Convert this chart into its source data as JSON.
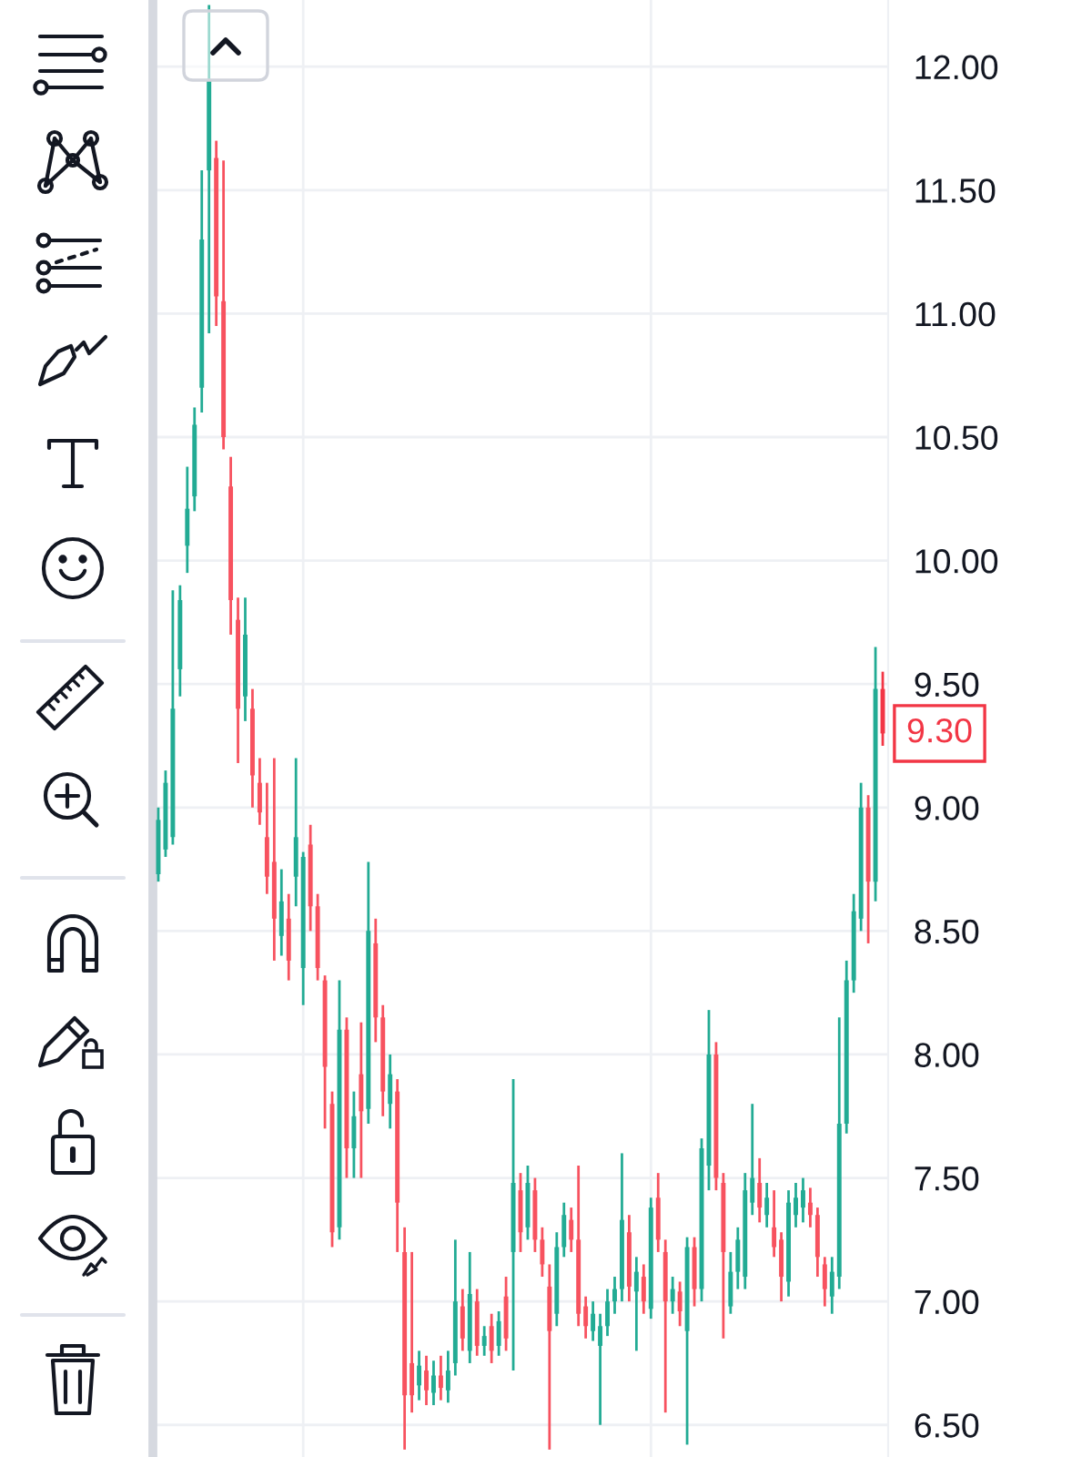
{
  "chart_data": {
    "type": "candlestick",
    "categories": [
      null,
      null,
      null,
      null,
      null,
      null,
      null,
      null,
      null,
      null,
      null,
      null,
      null,
      null,
      null,
      null,
      null,
      null,
      null,
      null,
      null,
      null,
      null,
      null,
      null,
      null,
      null,
      null,
      null,
      null,
      null,
      null,
      null,
      null,
      null,
      null,
      null,
      null,
      null,
      null,
      null,
      null,
      null,
      null,
      null,
      null,
      null,
      null,
      null,
      null,
      null,
      null,
      null,
      null,
      null,
      null,
      null,
      null,
      null,
      null,
      null,
      null,
      null,
      null,
      null,
      null,
      null,
      null,
      null,
      null,
      null,
      null,
      null,
      null,
      null,
      null,
      null,
      null,
      null,
      null,
      null,
      null,
      null,
      null,
      null,
      null,
      null,
      null,
      null,
      null,
      null,
      null,
      null,
      null,
      null,
      null,
      null,
      null,
      null,
      null,
      null
    ],
    "ohlc": [
      [
        8.73,
        9.0,
        8.7,
        8.95
      ],
      [
        8.83,
        9.15,
        8.8,
        9.1
      ],
      [
        8.88,
        9.88,
        8.85,
        9.4
      ],
      [
        9.56,
        9.9,
        9.45,
        9.84
      ],
      [
        10.06,
        10.38,
        9.95,
        10.21
      ],
      [
        10.26,
        10.62,
        10.2,
        10.55
      ],
      [
        10.7,
        11.58,
        10.6,
        11.3
      ],
      [
        11.58,
        12.25,
        10.92,
        11.95
      ],
      [
        11.63,
        11.7,
        10.95,
        11.07
      ],
      [
        11.05,
        11.62,
        10.45,
        10.5
      ],
      [
        10.3,
        10.42,
        9.7,
        9.84
      ],
      [
        9.76,
        9.85,
        9.18,
        9.4
      ],
      [
        9.45,
        9.85,
        9.35,
        9.7
      ],
      [
        9.4,
        9.48,
        9.0,
        9.13
      ],
      [
        9.1,
        9.2,
        8.93,
        8.98
      ],
      [
        8.88,
        9.1,
        8.65,
        8.72
      ],
      [
        8.78,
        9.2,
        8.38,
        8.55
      ],
      [
        8.48,
        8.75,
        8.4,
        8.62
      ],
      [
        8.55,
        8.65,
        8.3,
        8.38
      ],
      [
        8.72,
        9.2,
        8.6,
        8.88
      ],
      [
        8.35,
        8.82,
        8.2,
        8.8
      ],
      [
        8.85,
        8.93,
        8.5,
        8.6
      ],
      [
        8.6,
        8.65,
        8.3,
        8.35
      ],
      [
        8.3,
        8.32,
        7.7,
        7.95
      ],
      [
        7.8,
        7.85,
        7.22,
        7.28
      ],
      [
        7.3,
        8.3,
        7.25,
        8.1
      ],
      [
        8.1,
        8.15,
        7.5,
        7.62
      ],
      [
        7.62,
        7.85,
        7.5,
        7.75
      ],
      [
        7.92,
        8.13,
        7.5,
        7.77
      ],
      [
        7.78,
        8.78,
        7.72,
        8.5
      ],
      [
        8.45,
        8.55,
        8.05,
        8.15
      ],
      [
        8.15,
        8.2,
        7.75,
        7.85
      ],
      [
        7.8,
        8.0,
        7.7,
        7.92
      ],
      [
        7.85,
        7.9,
        7.2,
        7.4
      ],
      [
        7.2,
        7.3,
        6.4,
        6.62
      ],
      [
        6.75,
        7.2,
        6.55,
        6.62
      ],
      [
        6.66,
        6.8,
        6.6,
        6.74
      ],
      [
        6.72,
        6.78,
        6.58,
        6.64
      ],
      [
        6.63,
        6.76,
        6.58,
        6.7
      ],
      [
        6.7,
        6.78,
        6.6,
        6.65
      ],
      [
        6.64,
        6.8,
        6.59,
        6.72
      ],
      [
        6.75,
        7.25,
        6.7,
        7.0
      ],
      [
        6.98,
        7.05,
        6.8,
        6.85
      ],
      [
        6.8,
        7.2,
        6.75,
        7.03
      ],
      [
        7.0,
        7.05,
        6.78,
        6.82
      ],
      [
        6.82,
        6.9,
        6.78,
        6.86
      ],
      [
        6.9,
        6.95,
        6.75,
        6.8
      ],
      [
        6.82,
        6.96,
        6.78,
        6.92
      ],
      [
        7.02,
        7.1,
        6.8,
        6.85
      ],
      [
        7.2,
        7.9,
        6.72,
        7.48
      ],
      [
        7.45,
        7.52,
        7.2,
        7.28
      ],
      [
        7.3,
        7.55,
        7.25,
        7.48
      ],
      [
        7.45,
        7.5,
        7.2,
        7.25
      ],
      [
        7.25,
        7.3,
        7.1,
        7.15
      ],
      [
        7.06,
        7.15,
        6.4,
        6.88
      ],
      [
        6.95,
        7.28,
        6.9,
        7.22
      ],
      [
        7.22,
        7.4,
        7.18,
        7.35
      ],
      [
        7.33,
        7.38,
        7.2,
        7.25
      ],
      [
        7.25,
        7.55,
        6.9,
        6.95
      ],
      [
        6.98,
        7.02,
        6.85,
        6.9
      ],
      [
        6.88,
        7.0,
        6.84,
        6.95
      ],
      [
        6.82,
        6.95,
        6.5,
        6.9
      ],
      [
        6.9,
        7.05,
        6.86,
        7.0
      ],
      [
        7.0,
        7.1,
        6.95,
        7.05
      ],
      [
        7.05,
        7.6,
        7.0,
        7.33
      ],
      [
        7.28,
        7.35,
        7.0,
        7.06
      ],
      [
        7.04,
        7.18,
        6.8,
        7.12
      ],
      [
        7.1,
        7.15,
        6.95,
        7.0
      ],
      [
        6.97,
        7.42,
        6.93,
        7.38
      ],
      [
        7.42,
        7.52,
        7.2,
        7.25
      ],
      [
        7.2,
        7.25,
        6.55,
        7.0
      ],
      [
        7.0,
        7.1,
        6.95,
        7.05
      ],
      [
        7.04,
        7.08,
        6.9,
        6.96
      ],
      [
        6.88,
        7.26,
        6.42,
        7.22
      ],
      [
        7.22,
        7.26,
        6.98,
        7.05
      ],
      [
        7.05,
        7.66,
        7.0,
        7.62
      ],
      [
        7.55,
        8.18,
        7.45,
        8.0
      ],
      [
        8.0,
        8.05,
        7.45,
        7.5
      ],
      [
        7.48,
        7.52,
        6.85,
        7.2
      ],
      [
        6.98,
        7.2,
        6.95,
        7.12
      ],
      [
        7.12,
        7.3,
        7.05,
        7.25
      ],
      [
        7.1,
        7.52,
        7.05,
        7.45
      ],
      [
        7.4,
        7.8,
        7.35,
        7.5
      ],
      [
        7.48,
        7.58,
        7.32,
        7.38
      ],
      [
        7.35,
        7.48,
        7.3,
        7.42
      ],
      [
        7.3,
        7.45,
        7.18,
        7.22
      ],
      [
        7.25,
        7.28,
        7.0,
        7.1
      ],
      [
        7.08,
        7.45,
        7.02,
        7.4
      ],
      [
        7.35,
        7.48,
        7.3,
        7.42
      ],
      [
        7.38,
        7.5,
        7.32,
        7.45
      ],
      [
        7.4,
        7.46,
        7.3,
        7.35
      ],
      [
        7.35,
        7.38,
        7.1,
        7.18
      ],
      [
        7.15,
        7.18,
        6.98,
        7.05
      ],
      [
        7.02,
        7.18,
        6.95,
        7.12
      ],
      [
        7.1,
        8.15,
        7.05,
        7.72
      ],
      [
        7.72,
        8.38,
        7.68,
        8.3
      ],
      [
        8.3,
        8.65,
        8.25,
        8.58
      ],
      [
        8.55,
        9.1,
        8.5,
        9.0
      ],
      [
        9.0,
        9.05,
        8.45,
        8.7
      ],
      [
        8.7,
        9.65,
        8.62,
        9.48
      ],
      [
        9.48,
        9.55,
        9.25,
        9.3
      ]
    ],
    "colors": [
      "#22ab94",
      "#22ab94",
      "#22ab94",
      "#22ab94",
      "#22ab94",
      "#22ab94",
      "#22ab94",
      "#22ab94",
      "#f7525f",
      "#f7525f",
      "#f7525f",
      "#f7525f",
      "#22ab94",
      "#f7525f",
      "#f7525f",
      "#f7525f",
      "#f7525f",
      "#22ab94",
      "#f7525f",
      "#22ab94",
      "#22ab94",
      "#f7525f",
      "#f7525f",
      "#f7525f",
      "#f7525f",
      "#22ab94",
      "#f7525f",
      "#22ab94",
      "#f7525f",
      "#22ab94",
      "#f7525f",
      "#f7525f",
      "#22ab94",
      "#f7525f",
      "#f7525f",
      "#f7525f",
      "#22ab94",
      "#f7525f",
      "#22ab94",
      "#f7525f",
      "#22ab94",
      "#22ab94",
      "#f7525f",
      "#22ab94",
      "#f7525f",
      "#22ab94",
      "#f7525f",
      "#22ab94",
      "#f7525f",
      "#22ab94",
      "#f7525f",
      "#22ab94",
      "#f7525f",
      "#f7525f",
      "#f7525f",
      "#22ab94",
      "#22ab94",
      "#f7525f",
      "#f7525f",
      "#f7525f",
      "#22ab94",
      "#22ab94",
      "#22ab94",
      "#22ab94",
      "#22ab94",
      "#f7525f",
      "#22ab94",
      "#f7525f",
      "#22ab94",
      "#f7525f",
      "#f7525f",
      "#22ab94",
      "#f7525f",
      "#22ab94",
      "#f7525f",
      "#22ab94",
      "#22ab94",
      "#f7525f",
      "#f7525f",
      "#22ab94",
      "#22ab94",
      "#22ab94",
      "#22ab94",
      "#f7525f",
      "#22ab94",
      "#f7525f",
      "#f7525f",
      "#22ab94",
      "#22ab94",
      "#22ab94",
      "#f7525f",
      "#f7525f",
      "#f7525f",
      "#22ab94",
      "#22ab94",
      "#22ab94",
      "#22ab94",
      "#22ab94",
      "#f7525f",
      "#22ab94",
      "#f23645"
    ],
    "ylim": [
      6.37,
      12.27
    ],
    "yticks": [
      {
        "value": 6.5,
        "label": "6.50"
      },
      {
        "value": 7,
        "label": "7.00"
      },
      {
        "value": 7.5,
        "label": "7.50"
      },
      {
        "value": 8,
        "label": "8.00"
      },
      {
        "value": 8.5,
        "label": "8.50"
      },
      {
        "value": 9,
        "label": "9.00"
      },
      {
        "value": 9.5,
        "label": "9.50"
      },
      {
        "value": 10,
        "label": "10.00"
      },
      {
        "value": 10.5,
        "label": "10.50"
      },
      {
        "value": 11,
        "label": "11.00"
      },
      {
        "value": 11.5,
        "label": "11.50"
      },
      {
        "value": 12,
        "label": "12.00"
      }
    ],
    "tick_labels": "y",
    "grid": true,
    "annotations": [
      "9.30"
    ]
  }
}
